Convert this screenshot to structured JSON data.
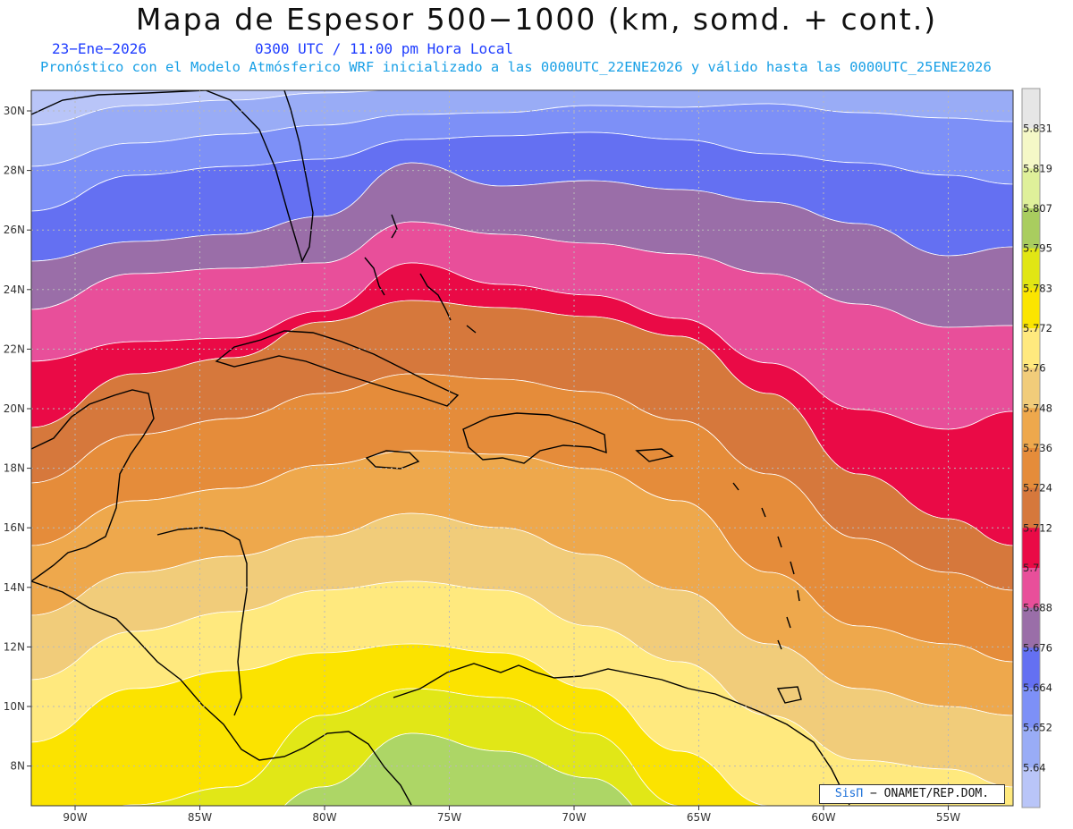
{
  "header": {
    "title": "Mapa de Espesor 500−1000 (km, somd. + cont.)",
    "date": "23−Ene−2026",
    "time": "0300 UTC / 11:00 pm Hora Local",
    "info": "Pronóstico con el Modelo Atmósferico WRF inicializado a las 0000UTC_22ENE2026 y válido hasta las  0000UTC_25ENE2026"
  },
  "map": {
    "lat_labels": [
      "30N",
      "28N",
      "26N",
      "24N",
      "22N",
      "20N",
      "18N",
      "16N",
      "14N",
      "12N",
      "10N",
      "8N"
    ],
    "lat_values": [
      30,
      28,
      26,
      24,
      22,
      20,
      18,
      16,
      14,
      12,
      10,
      8
    ],
    "lon_labels": [
      "90W",
      "85W",
      "80W",
      "75W",
      "70W",
      "65W",
      "60W",
      "55W"
    ],
    "lon_values": [
      -90,
      -85,
      -80,
      -75,
      -70,
      -65,
      -60,
      -55
    ],
    "bands": [
      {
        "color": "#b9c5f8"
      },
      {
        "color": "#99acf6"
      },
      {
        "color": "#7d90f7"
      },
      {
        "color": "#6470f2"
      },
      {
        "color": "#9a6ea8"
      },
      {
        "color": "#e84f9a"
      },
      {
        "color": "#ea0a46"
      },
      {
        "color": "#d6783c"
      },
      {
        "color": "#e58c3a"
      },
      {
        "color": "#eea84c"
      },
      {
        "color": "#f1cc7a"
      },
      {
        "color": "#ffe97e"
      },
      {
        "color": "#fbe300"
      },
      {
        "color": "#e1e717"
      },
      {
        "color": "#add666"
      }
    ]
  },
  "legend": {
    "labels": [
      "5.831",
      "5.819",
      "5.807",
      "5.795",
      "5.783",
      "5.772",
      "5.76",
      "5.748",
      "5.736",
      "5.724",
      "5.712",
      "5.7",
      "5.688",
      "5.676",
      "5.664",
      "5.652",
      "5.64"
    ],
    "colors": [
      "#e6e6e6",
      "#f5f8c7",
      "#dff09a",
      "#a9cd5f",
      "#e1e614",
      "#fbe500",
      "#ffe97e",
      "#f1cc7a",
      "#eea84c",
      "#e58c3a",
      "#d6783c",
      "#ea0a46",
      "#e84f9a",
      "#9a6ea8",
      "#6470f2",
      "#7d90f7",
      "#99acf6",
      "#b9c5f8"
    ]
  },
  "credit": {
    "brand": "SisΠ",
    "text": "− ONAMET/REP.DOM."
  }
}
